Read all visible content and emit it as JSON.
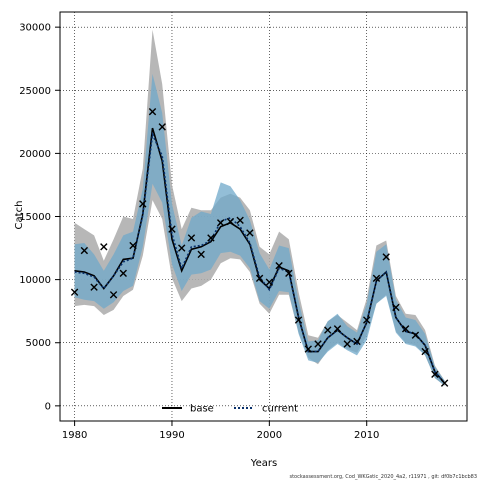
{
  "chart_data": {
    "type": "line",
    "xlabel": "Years",
    "ylabel": "Catch",
    "xlim": [
      1978.5,
      2020.3
    ],
    "ylim": [
      -1200,
      31200
    ],
    "xticks": [
      1980,
      1990,
      2000,
      2010
    ],
    "yticks": [
      0,
      5000,
      10000,
      15000,
      20000,
      25000,
      30000
    ],
    "grid": true,
    "legend_position": "bottom-center",
    "footer": "stockassessment.org, Cod_WKGstic_2020_4a2, r11971 , git: df0b7c1bcb83",
    "years": [
      1980,
      1981,
      1982,
      1983,
      1984,
      1985,
      1986,
      1987,
      1988,
      1989,
      1990,
      1991,
      1992,
      1993,
      1994,
      1995,
      1996,
      1997,
      1998,
      1999,
      2000,
      2001,
      2002,
      2003,
      2004,
      2005,
      2006,
      2007,
      2008,
      2009,
      2010,
      2011,
      2012,
      2013,
      2014,
      2015,
      2016,
      2017,
      2018
    ],
    "observed": [
      9000,
      12300,
      9400,
      12600,
      8800,
      10500,
      12700,
      16000,
      23300,
      22100,
      14000,
      12500,
      13300,
      12000,
      13300,
      14500,
      14600,
      14700,
      13700,
      10100,
      9800,
      11100,
      10500,
      6800,
      4500,
      4900,
      6000,
      6100,
      4900,
      5100,
      6800,
      10100,
      11800,
      7800,
      6100,
      5600,
      4300,
      2500,
      1800
    ],
    "series": [
      {
        "name": "base",
        "color": "#000000",
        "line_style": "solid",
        "band_color": "#aaaaaa",
        "values": [
          10700,
          10600,
          10300,
          9300,
          10300,
          11600,
          11700,
          15200,
          22000,
          19400,
          13200,
          10700,
          12400,
          12600,
          13000,
          14200,
          14500,
          14000,
          12800,
          10000,
          9300,
          11000,
          10700,
          7000,
          4300,
          4300,
          5400,
          6000,
          5400,
          4900,
          6600,
          9900,
          10600,
          7000,
          5900,
          5700,
          4800,
          2700,
          1800
        ],
        "upper": [
          14500,
          14000,
          13500,
          11500,
          13200,
          15000,
          14800,
          18800,
          29800,
          25500,
          17500,
          14000,
          15700,
          15500,
          15500,
          16500,
          16800,
          16500,
          15500,
          12600,
          12000,
          13800,
          13200,
          9000,
          5600,
          5400,
          6700,
          7200,
          6600,
          6000,
          8500,
          12700,
          13100,
          8700,
          7300,
          7200,
          6000,
          3200,
          2000
        ],
        "lower": [
          7900,
          8000,
          7900,
          7200,
          7600,
          8700,
          9200,
          11900,
          16300,
          14800,
          10100,
          8300,
          9300,
          9500,
          10000,
          11300,
          11700,
          11600,
          10600,
          8100,
          7300,
          8800,
          8800,
          5800,
          3800,
          3300,
          4400,
          5000,
          4500,
          4200,
          5600,
          8100,
          8800,
          5900,
          5000,
          4800,
          4000,
          2200,
          1600
        ]
      },
      {
        "name": "current",
        "color": "#08306b",
        "line_style": "dotted",
        "band_color": "#6fa8c9",
        "values": [
          10600,
          10500,
          10200,
          9300,
          10300,
          11400,
          11700,
          15100,
          21500,
          19800,
          13600,
          10900,
          12600,
          12700,
          13100,
          14600,
          14900,
          14200,
          12900,
          10200,
          9200,
          10900,
          10600,
          7000,
          4300,
          4300,
          5400,
          6000,
          5400,
          4900,
          6600,
          9900,
          10600,
          7000,
          5900,
          5700,
          4800,
          2700,
          1800
        ],
        "upper": [
          12800,
          12900,
          12000,
          10700,
          12000,
          13500,
          13800,
          17200,
          26300,
          23200,
          16000,
          12700,
          14900,
          15400,
          15200,
          17700,
          17400,
          16300,
          14700,
          12100,
          10800,
          12700,
          12500,
          8300,
          5100,
          5200,
          6700,
          7300,
          6300,
          5800,
          8100,
          12200,
          12800,
          8400,
          7000,
          6800,
          5700,
          3100,
          2000
        ],
        "lower": [
          8600,
          8400,
          8300,
          7700,
          8200,
          9100,
          9500,
          12600,
          17600,
          16100,
          11200,
          9100,
          10400,
          10500,
          10800,
          12100,
          12200,
          11900,
          10900,
          8300,
          7700,
          9100,
          9000,
          5700,
          3600,
          3400,
          4300,
          4900,
          4400,
          4000,
          5200,
          8100,
          8700,
          5800,
          4900,
          4700,
          4000,
          2200,
          1600
        ]
      }
    ]
  }
}
